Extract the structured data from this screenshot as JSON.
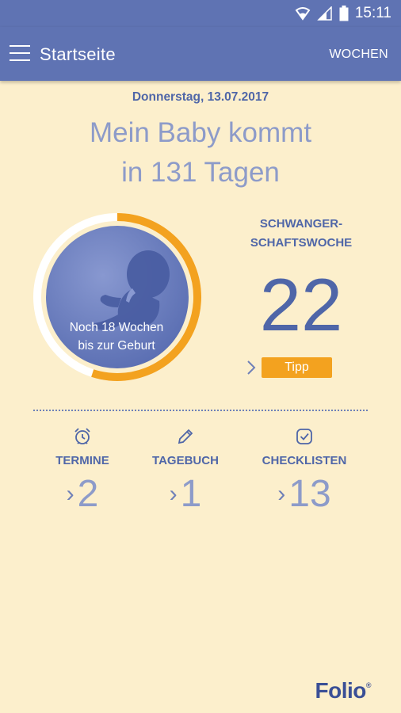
{
  "status_bar": {
    "time": "15:11",
    "icons": [
      "wifi-icon",
      "signal-icon",
      "battery-icon"
    ]
  },
  "app_bar": {
    "title": "Startseite",
    "action_label": "WOCHEN",
    "menu_icon": "hamburger-menu-icon"
  },
  "date": "Donnerstag, 13.07.2017",
  "headline": {
    "line1": "Mein Baby kommt",
    "line2": "in 131 Tagen"
  },
  "progress": {
    "text_line1": "Noch 18 Wochen",
    "text_line2": "bis zur Geburt",
    "weeks_completed": 22,
    "weeks_total": 40,
    "fraction": 0.55
  },
  "pregnancy_week": {
    "label_line1": "SCHWANGER-",
    "label_line2": "SCHAFTSWOCHE",
    "number": "22",
    "tip_label": "Tipp"
  },
  "stats": [
    {
      "label": "TERMINE",
      "value": "2",
      "icon": "alarm-clock-icon"
    },
    {
      "label": "TAGEBUCH",
      "value": "1",
      "icon": "pencil-icon"
    },
    {
      "label": "CHECKLISTEN",
      "value": "13",
      "icon": "checkbox-icon"
    }
  ],
  "brand": "Folio",
  "colors": {
    "primary": "#5f73b3",
    "background": "#fcefcc",
    "accent": "#f3a21f",
    "text_dark": "#4f66a8",
    "text_light": "#8d9bc9"
  }
}
